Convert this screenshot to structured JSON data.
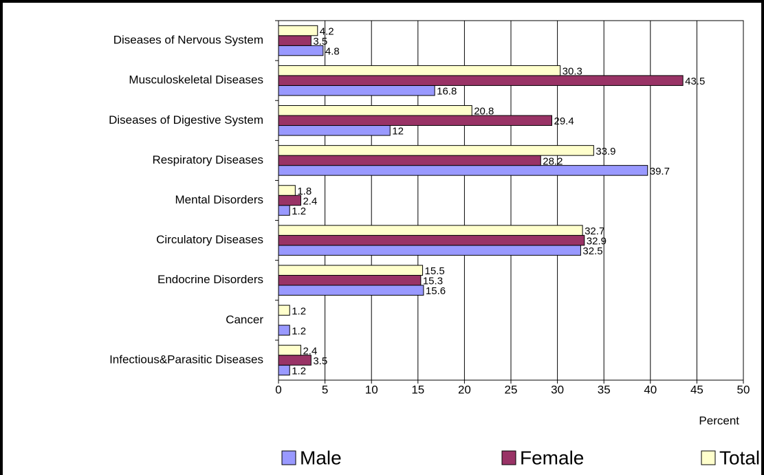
{
  "chart_data": {
    "type": "hbar",
    "categories": [
      "Diseases of Nervous System",
      "Musculoskeletal Diseases",
      "Diseases of Digestive System",
      "Respiratory Diseases",
      "Mental Disorders",
      "Circulatory Diseases",
      "Endocrine Disorders",
      "Cancer",
      "Infectious&Parasitic Diseases"
    ],
    "series": [
      {
        "name": "Male",
        "color": "#9999ff",
        "values": [
          4.8,
          16.8,
          12,
          39.7,
          1.2,
          32.5,
          15.6,
          1.2,
          1.2
        ]
      },
      {
        "name": "Female",
        "color": "#993366",
        "values": [
          3.5,
          43.5,
          29.4,
          28.2,
          2.4,
          32.9,
          15.3,
          null,
          3.5
        ]
      },
      {
        "name": "Total",
        "color": "#ffffcc",
        "values": [
          4.2,
          30.3,
          20.8,
          33.9,
          1.8,
          32.7,
          15.5,
          1.2,
          2.4
        ]
      }
    ],
    "xlabel": "Percent",
    "xlim": [
      0,
      50
    ],
    "xticks": [
      0,
      5,
      10,
      15,
      20,
      25,
      30,
      35,
      40,
      45,
      50
    ],
    "grid": true,
    "legend": "bottom"
  }
}
